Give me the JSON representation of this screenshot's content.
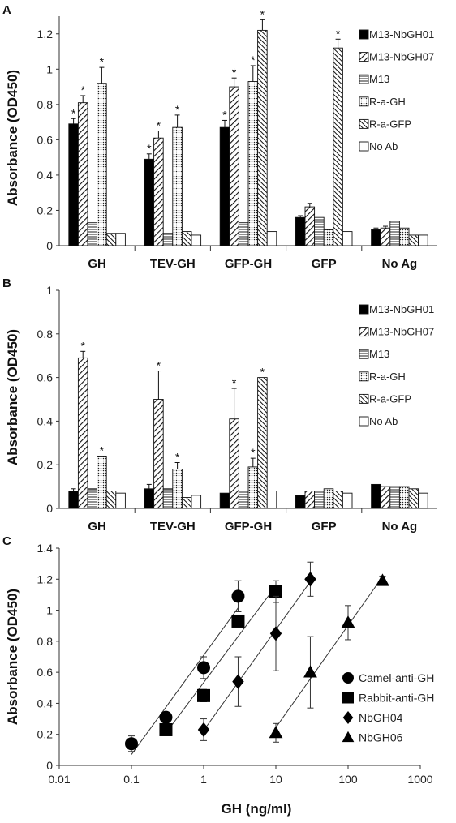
{
  "chart_data": [
    {
      "panel": "A",
      "type": "bar",
      "ylabel": "Absorbance (OD450)",
      "ylim": [
        0,
        1.3
      ],
      "yticks": [
        0,
        0.2,
        0.4,
        0.6,
        0.8,
        1,
        1.2
      ],
      "ytick_labels": [
        "0",
        "0.2",
        "0.4",
        "0.6",
        "0.8",
        "1",
        "1.2"
      ],
      "categories": [
        "GH",
        "TEV-GH",
        "GFP-GH",
        "GFP",
        "No Ag"
      ],
      "legend_position": "top-right",
      "series": [
        {
          "name": "M13-NbGH01",
          "pattern": "solid",
          "values": [
            0.69,
            0.49,
            0.67,
            0.16,
            0.09
          ],
          "errors": [
            0.03,
            0.03,
            0.04,
            0.01,
            0.01
          ],
          "significant": [
            true,
            true,
            true,
            false,
            false
          ]
        },
        {
          "name": "M13-NbGH07",
          "pattern": "diag",
          "values": [
            0.81,
            0.61,
            0.9,
            0.22,
            0.1
          ],
          "errors": [
            0.04,
            0.04,
            0.05,
            0.02,
            0.01
          ],
          "significant": [
            true,
            true,
            true,
            false,
            false
          ]
        },
        {
          "name": "M13",
          "pattern": "hlines",
          "values": [
            0.13,
            0.07,
            0.13,
            0.16,
            0.14
          ],
          "errors": [
            0,
            0,
            0,
            0,
            0
          ],
          "significant": [
            false,
            false,
            false,
            false,
            false
          ]
        },
        {
          "name": "R-a-GH",
          "pattern": "dots",
          "values": [
            0.92,
            0.67,
            0.93,
            0.09,
            0.1
          ],
          "errors": [
            0.09,
            0.07,
            0.09,
            0,
            0
          ],
          "significant": [
            true,
            true,
            true,
            false,
            false
          ]
        },
        {
          "name": "R-a-GFP",
          "pattern": "diag-dense",
          "values": [
            0.07,
            0.08,
            1.22,
            1.12,
            0.06
          ],
          "errors": [
            0,
            0,
            0.06,
            0.05,
            0
          ],
          "significant": [
            false,
            false,
            true,
            true,
            false
          ]
        },
        {
          "name": "No Ab",
          "pattern": "white",
          "values": [
            0.07,
            0.06,
            0.08,
            0.08,
            0.06
          ],
          "errors": [
            0,
            0,
            0,
            0,
            0
          ],
          "significant": [
            false,
            false,
            false,
            false,
            false
          ]
        }
      ]
    },
    {
      "panel": "B",
      "type": "bar",
      "ylabel": "Absorbance (OD450)",
      "ylim": [
        0,
        1.0
      ],
      "yticks": [
        0,
        0.2,
        0.4,
        0.6,
        0.8,
        1
      ],
      "ytick_labels": [
        "0",
        "0.2",
        "0.4",
        "0.6",
        "0.8",
        "1"
      ],
      "categories": [
        "GH",
        "TEV-GH",
        "GFP-GH",
        "GFP",
        "No Ag"
      ],
      "legend_position": "top-right",
      "series": [
        {
          "name": "M13-NbGH01",
          "pattern": "solid",
          "values": [
            0.08,
            0.09,
            0.07,
            0.06,
            0.11
          ],
          "errors": [
            0.01,
            0.02,
            0,
            0,
            0
          ],
          "significant": [
            false,
            false,
            false,
            false,
            false
          ]
        },
        {
          "name": "M13-NbGH07",
          "pattern": "diag",
          "values": [
            0.69,
            0.5,
            0.41,
            0.08,
            0.1
          ],
          "errors": [
            0.03,
            0.13,
            0.14,
            0,
            0
          ],
          "significant": [
            true,
            true,
            true,
            false,
            false
          ]
        },
        {
          "name": "M13",
          "pattern": "hlines",
          "values": [
            0.09,
            0.09,
            0.08,
            0.08,
            0.1
          ],
          "errors": [
            0,
            0,
            0,
            0,
            0
          ],
          "significant": [
            false,
            false,
            false,
            false,
            false
          ]
        },
        {
          "name": "R-a-GH",
          "pattern": "dots",
          "values": [
            0.24,
            0.18,
            0.19,
            0.09,
            0.1
          ],
          "errors": [
            0,
            0.03,
            0.04,
            0,
            0
          ],
          "significant": [
            true,
            true,
            true,
            false,
            false
          ]
        },
        {
          "name": "R-a-GFP",
          "pattern": "diag-dense",
          "values": [
            0.08,
            0.05,
            0.6,
            0.08,
            0.09
          ],
          "errors": [
            0,
            0,
            0,
            0,
            0
          ],
          "significant": [
            false,
            false,
            true,
            false,
            false
          ]
        },
        {
          "name": "No Ab",
          "pattern": "white",
          "values": [
            0.07,
            0.06,
            0.08,
            0.07,
            0.07
          ],
          "errors": [
            0,
            0,
            0,
            0,
            0
          ],
          "significant": [
            false,
            false,
            false,
            false,
            false
          ]
        }
      ]
    },
    {
      "panel": "C",
      "type": "scatter",
      "xlabel": "GH (ng/ml)",
      "ylabel": "Absorbance (OD450)",
      "xscale": "log",
      "xlim": [
        0.01,
        1000
      ],
      "xticks": [
        0.01,
        0.1,
        1,
        10,
        100,
        1000
      ],
      "xtick_labels": [
        "0.01",
        "0.1",
        "1",
        "10",
        "100",
        "1000"
      ],
      "ylim": [
        0,
        1.4
      ],
      "yticks": [
        0,
        0.2,
        0.4,
        0.6,
        0.8,
        1,
        1.2,
        1.4
      ],
      "ytick_labels": [
        "0",
        "0.2",
        "0.4",
        "0.6",
        "0.8",
        "1",
        "1.2",
        "1.4"
      ],
      "legend_position": "right",
      "series": [
        {
          "name": "Camel-anti-GH",
          "marker": "circle",
          "x": [
            0.1,
            0.3,
            1,
            3
          ],
          "y": [
            0.14,
            0.31,
            0.63,
            1.09
          ],
          "errors": [
            0.05,
            0.02,
            0.07,
            0.1
          ]
        },
        {
          "name": "Rabbit-anti-GH",
          "marker": "square",
          "x": [
            0.3,
            1,
            3,
            10
          ],
          "y": [
            0.23,
            0.45,
            0.93,
            1.12
          ],
          "errors": [
            0.02,
            0.04,
            0.03,
            0.07
          ]
        },
        {
          "name": "NbGH04",
          "marker": "diamond",
          "x": [
            1,
            3,
            10,
            30
          ],
          "y": [
            0.23,
            0.54,
            0.85,
            1.2
          ],
          "errors": [
            0.07,
            0.16,
            0.24,
            0.11
          ]
        },
        {
          "name": "NbGH06",
          "marker": "triangle",
          "x": [
            10,
            30,
            100,
            300
          ],
          "y": [
            0.21,
            0.6,
            0.92,
            1.19
          ],
          "errors": [
            0.06,
            0.23,
            0.11,
            0.03
          ]
        }
      ]
    }
  ]
}
